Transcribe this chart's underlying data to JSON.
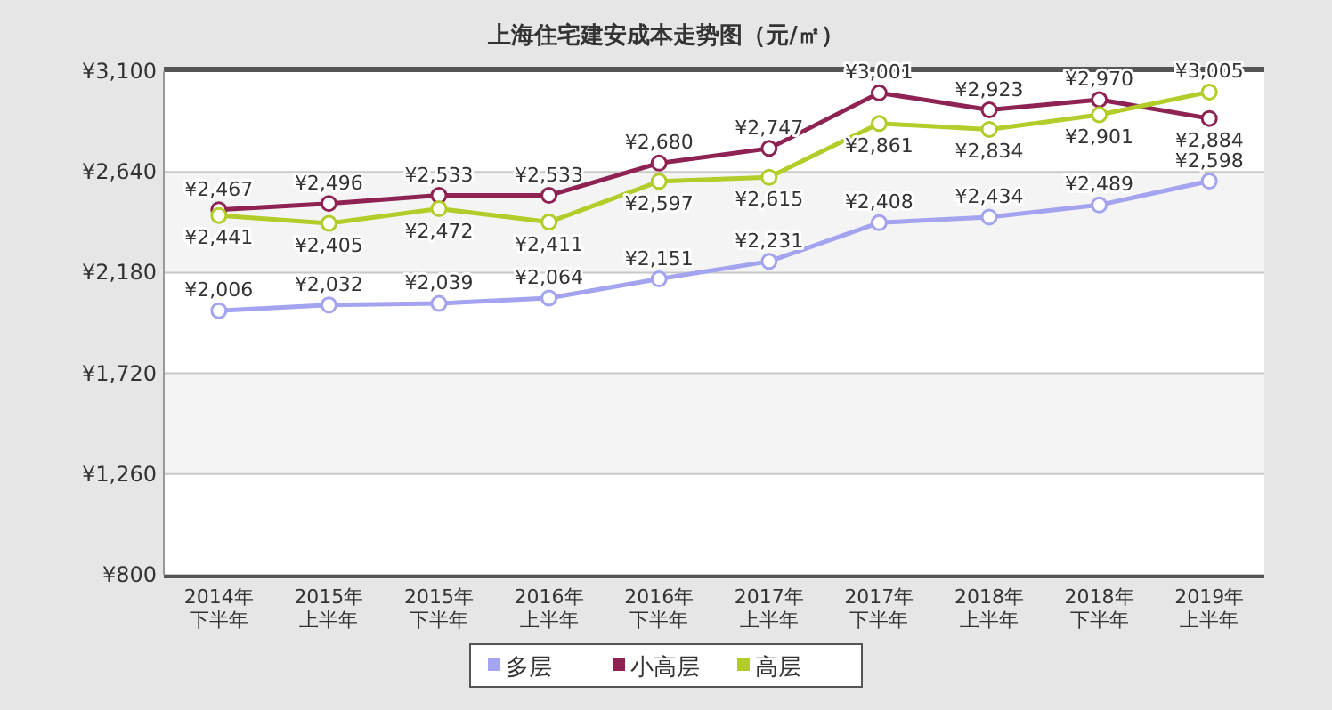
{
  "chart_data": {
    "type": "line",
    "title": "上海住宅建安成本走势图（元/㎡）",
    "categories": [
      "2014年下半年",
      "2015年上半年",
      "2015年下半年",
      "2016年上半年",
      "2016年下半年",
      "2017年上半年",
      "2017年下半年",
      "2018年上半年",
      "2018年下半年",
      "2019年上半年"
    ],
    "series": [
      {
        "name": "多层",
        "color": "#a3a3f0",
        "values": [
          2006,
          2032,
          2039,
          2064,
          2151,
          2231,
          2408,
          2434,
          2489,
          2598
        ],
        "value_labels": [
          "¥2,006",
          "¥2,032",
          "¥2,039",
          "¥2,064",
          "¥2,151",
          "¥2,231",
          "¥2,408",
          "¥2,434",
          "¥2,489",
          "¥2,598"
        ]
      },
      {
        "name": "小高层",
        "color": "#8e2253",
        "values": [
          2467,
          2496,
          2533,
          2533,
          2680,
          2747,
          3001,
          2923,
          2970,
          2884
        ],
        "value_labels": [
          "¥2,467",
          "¥2,496",
          "¥2,533",
          "¥2,533",
          "¥2,680",
          "¥2,747",
          "¥3,001",
          "¥2,923",
          "¥2,970",
          "¥2,884"
        ]
      },
      {
        "name": "高层",
        "color": "#b3cc2a",
        "values": [
          2441,
          2405,
          2472,
          2411,
          2597,
          2615,
          2861,
          2834,
          2901,
          3005
        ],
        "value_labels": [
          "¥2,441",
          "¥2,405",
          "¥2,472",
          "¥2,411",
          "¥2,597",
          "¥2,615",
          "¥2,861",
          "¥2,834",
          "¥2,901",
          "¥3,005"
        ]
      }
    ],
    "ylim": [
      800,
      3100
    ],
    "yticks": [
      {
        "value": 800,
        "label": "¥800"
      },
      {
        "value": 1260,
        "label": "¥1,260"
      },
      {
        "value": 1720,
        "label": "¥1,720"
      },
      {
        "value": 2180,
        "label": "¥2,180"
      },
      {
        "value": 2640,
        "label": "¥2,640"
      },
      {
        "value": 3100,
        "label": "¥3,100"
      }
    ],
    "grid": "y",
    "legend": "bottom",
    "marker": "circle",
    "line_style": "solid"
  }
}
